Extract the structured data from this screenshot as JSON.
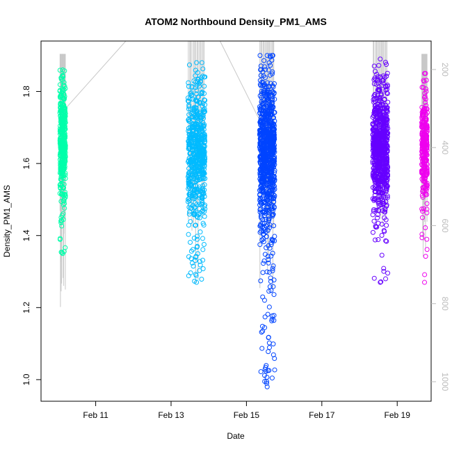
{
  "chart_data": {
    "type": "scatter",
    "title": "ATOM2 Northbound Density_PM1_AMS",
    "xlabel": "Date",
    "ylabel": "Density_PM1_AMS",
    "x_ticks": [
      "Feb 11",
      "Feb 13",
      "Feb 15",
      "Feb 17",
      "Feb 19"
    ],
    "x_tick_days": [
      11,
      13,
      15,
      17,
      19
    ],
    "xlim": [
      9.55,
      19.9
    ],
    "y_ticks": [
      1.0,
      1.2,
      1.4,
      1.6,
      1.8
    ],
    "y_tick_labels": [
      "1.0",
      "1.2",
      "1.4",
      "1.6",
      "1.8"
    ],
    "ylim": [
      0.94,
      1.94
    ],
    "y2_ticks": [
      200,
      400,
      600,
      800,
      1000
    ],
    "y2_tick_labels": [
      "200",
      "400",
      "600",
      "800",
      "1000"
    ],
    "y2_lim": [
      127,
      1050
    ],
    "y2_color": "#bbbbbb",
    "grid": false,
    "marker": "open-circle",
    "series": [
      {
        "color": "#00ffaa",
        "x_range": [
          10.05,
          10.2
        ],
        "y_range": [
          1.35,
          1.86
        ],
        "center": 1.66,
        "spread": 0.07,
        "n": 380,
        "altitude_range": [
          160,
          810
        ]
      },
      {
        "color": "#00bbff",
        "x_range": [
          13.45,
          13.9
        ],
        "y_range": [
          1.27,
          1.88
        ],
        "center": 1.63,
        "spread": 0.09,
        "n": 600,
        "altitude_range": [
          127,
          795
        ]
      },
      {
        "color": "#0044ff",
        "x_range": [
          15.35,
          15.75
        ],
        "y_range": [
          0.98,
          1.9
        ],
        "center": 1.63,
        "spread": 0.1,
        "n": 900,
        "altitude_range": [
          127,
          780
        ]
      },
      {
        "color": "#6600ff",
        "x_range": [
          18.35,
          18.75
        ],
        "y_range": [
          1.27,
          1.89
        ],
        "center": 1.64,
        "spread": 0.08,
        "n": 750,
        "altitude_range": [
          127,
          620
        ]
      },
      {
        "color": "#ee00ee",
        "x_range": [
          19.65,
          19.8
        ],
        "y_range": [
          1.27,
          1.85
        ],
        "center": 1.64,
        "spread": 0.07,
        "n": 280,
        "altitude_range": [
          160,
          680
        ]
      }
    ],
    "altitude_trace_color": "#c8c8c8",
    "transit_lines": [
      {
        "x": [
          10.2,
          11.8
        ],
        "altitude": [
          300,
          127
        ]
      },
      {
        "x": [
          14.3,
          15.35
        ],
        "altitude": [
          127,
          330
        ]
      }
    ]
  }
}
